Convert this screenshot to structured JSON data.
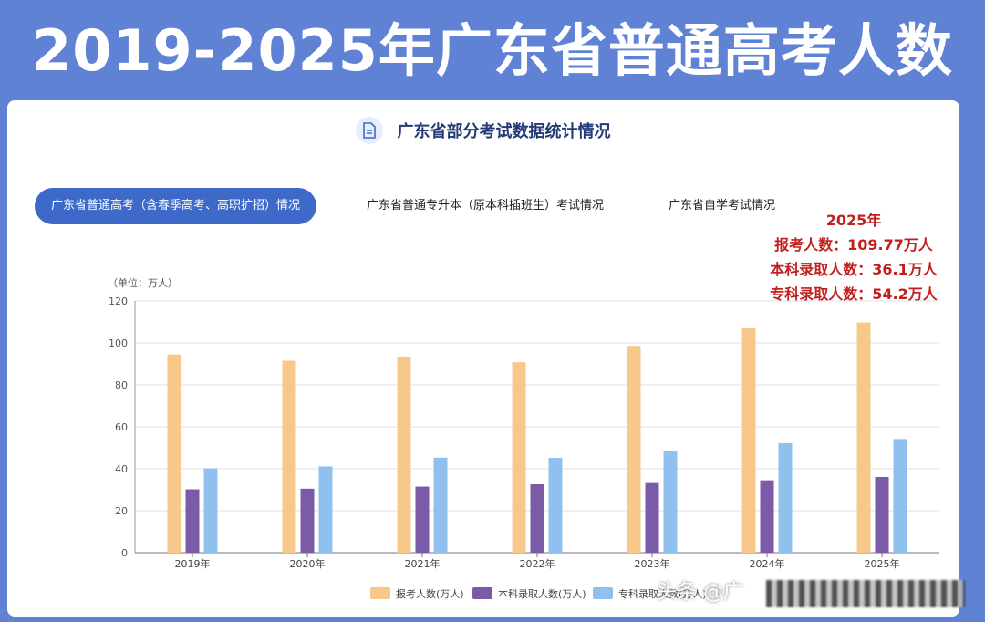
{
  "banner": {
    "title": "2019-2025年广东省普通高考人数"
  },
  "header": {
    "icon": "document-icon",
    "title": "广东省部分考试数据统计情况"
  },
  "tabs": [
    {
      "label": "广东省普通高考（含春季高考、高职扩招）情况",
      "active": true
    },
    {
      "label": "广东省普通专升本（原本科插班生）考试情况",
      "active": false
    },
    {
      "label": "广东省自学考试情况",
      "active": false
    }
  ],
  "annotation": {
    "year": "2025年",
    "line1": "报考人数：109.77万人",
    "line2": "本科录取人数：36.1万人",
    "line3": "专科录取人数：54.2万人"
  },
  "watermark": {
    "text": "头条 @广"
  },
  "colors": {
    "applicants": "#f7c889",
    "undergrad": "#7b5aa8",
    "vocational": "#8fc0ee"
  },
  "chart_data": {
    "type": "bar",
    "unit_label": "（单位：万人）",
    "categories": [
      "2019年",
      "2020年",
      "2021年",
      "2022年",
      "2023年",
      "2024年",
      "2025年"
    ],
    "series": [
      {
        "name": "报考人数(万人)",
        "values": [
          94.5,
          91.5,
          93.5,
          90.8,
          98.6,
          107,
          109.77
        ]
      },
      {
        "name": "本科录取人数(万人)",
        "values": [
          30.2,
          30.5,
          31.5,
          32.6,
          33.2,
          34.5,
          36.1
        ]
      },
      {
        "name": "专科录取人数(万人)",
        "values": [
          40.2,
          41.1,
          45.3,
          45.2,
          48.3,
          52.2,
          54.2
        ]
      }
    ],
    "ylim": [
      0,
      120
    ],
    "yticks": [
      0,
      20,
      40,
      60,
      80,
      100,
      120
    ],
    "grid": true,
    "legend": "bottom"
  }
}
